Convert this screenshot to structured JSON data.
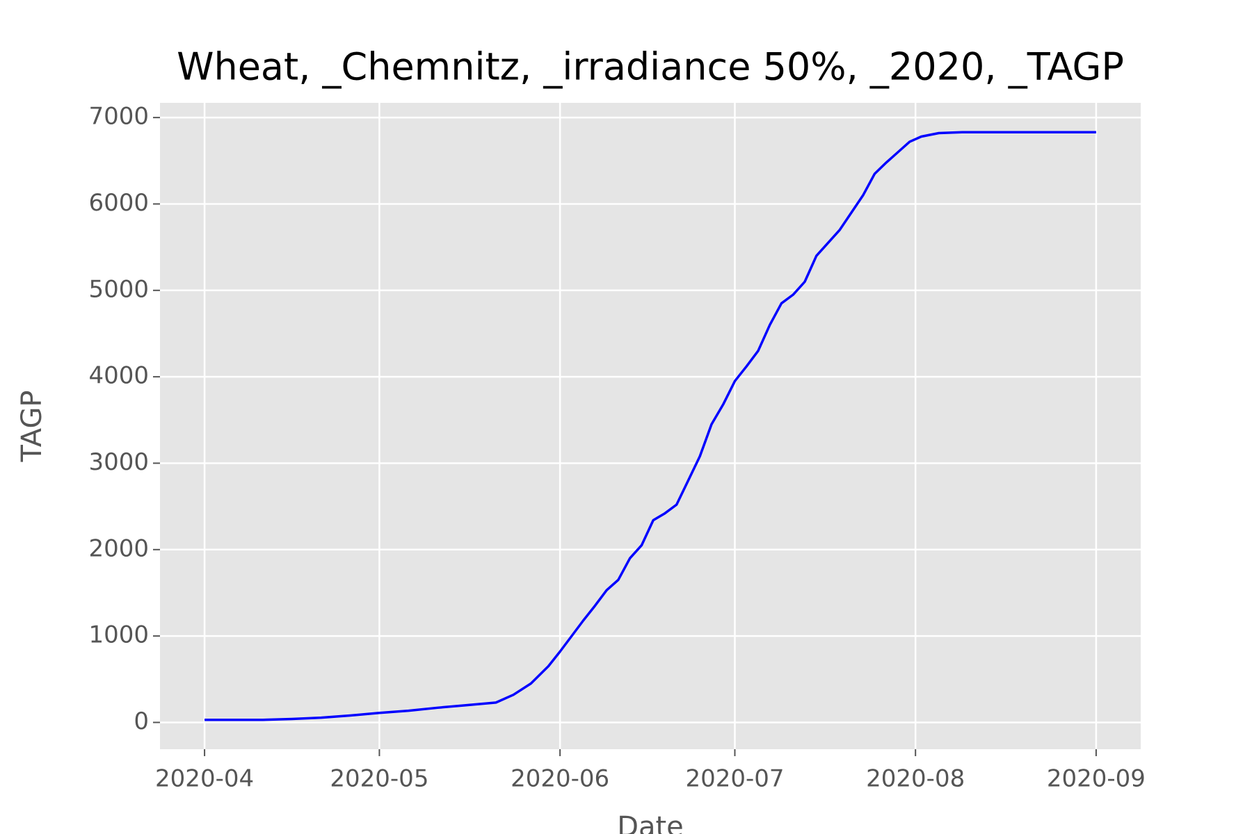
{
  "chart_data": {
    "type": "line",
    "title": "Wheat, _Chemnitz, _irradiance 50%, _2020, _TAGP",
    "x_label": "Date",
    "y_label": "TAGP",
    "x": [
      0,
      5,
      10,
      15,
      20,
      25,
      30,
      35,
      40,
      45,
      50,
      53,
      56,
      59,
      61,
      63,
      65,
      67,
      69,
      71,
      73,
      75,
      77,
      79,
      81,
      83,
      85,
      87,
      89,
      91,
      93,
      95,
      97,
      99,
      101,
      103,
      105,
      107,
      109,
      111,
      113,
      115,
      117,
      119,
      121,
      123,
      126,
      130,
      140,
      153
    ],
    "series": [
      {
        "name": "TAGP",
        "color": "#0000ff",
        "values": [
          30,
          30,
          30,
          40,
          55,
          80,
          110,
          135,
          170,
          200,
          230,
          320,
          450,
          650,
          820,
          1000,
          1180,
          1350,
          1530,
          1650,
          1900,
          2050,
          2340,
          2420,
          2520,
          2800,
          3080,
          3450,
          3680,
          3950,
          4120,
          4300,
          4600,
          4850,
          4950,
          5100,
          5400,
          5550,
          5700,
          5900,
          6100,
          6350,
          6480,
          6600,
          6720,
          6780,
          6820,
          6830,
          6830,
          6830
        ]
      }
    ],
    "xlim": [
      -7.65,
      160.65
    ],
    "xticks": [
      {
        "value": 0,
        "label": "2020-04"
      },
      {
        "value": 30,
        "label": "2020-05"
      },
      {
        "value": 61,
        "label": "2020-06"
      },
      {
        "value": 91,
        "label": "2020-07"
      },
      {
        "value": 122,
        "label": "2020-08"
      },
      {
        "value": 153,
        "label": "2020-09"
      }
    ],
    "ylim": [
      -310,
      7170
    ],
    "yticks": [
      0,
      1000,
      2000,
      3000,
      4000,
      5000,
      6000,
      7000
    ],
    "grid": true
  }
}
